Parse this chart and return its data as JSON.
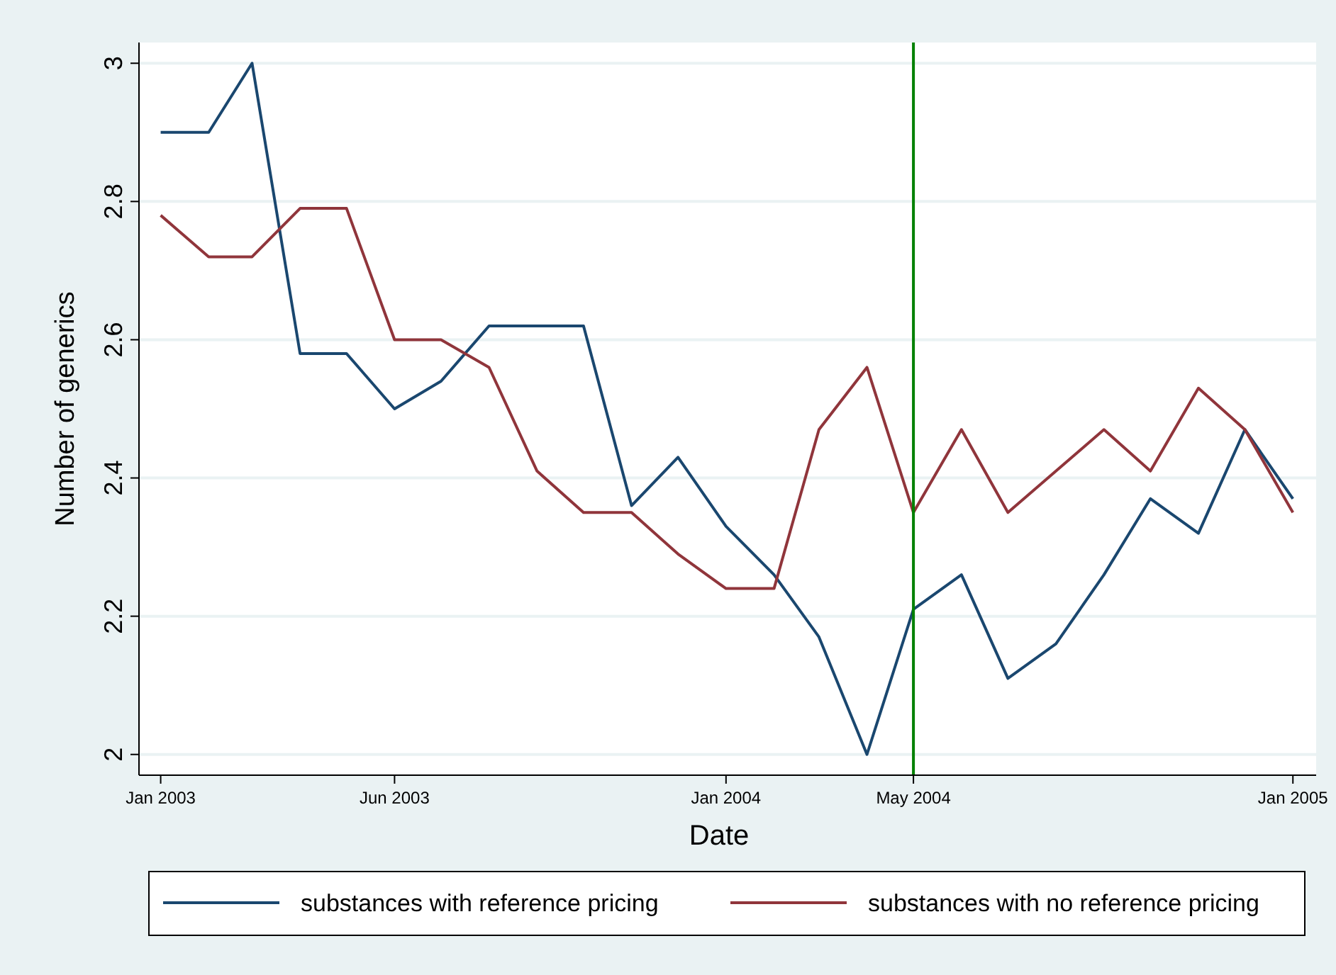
{
  "chart_data": {
    "type": "line",
    "xlabel": "Date",
    "ylabel": "Number of generics",
    "x": [
      "2003-01",
      "2003-02",
      "2003-03",
      "2003-04",
      "2003-05",
      "2003-06",
      "2003-07",
      "2003-08",
      "2003-09",
      "2003-10",
      "2003-11",
      "2003-12",
      "2004-01",
      "2004-02",
      "2004-03",
      "2004-04",
      "2004-05",
      "2004-06",
      "2004-07",
      "2004-08",
      "2004-09",
      "2004-10",
      "2004-11",
      "2004-12",
      "2005-01"
    ],
    "series": [
      {
        "name": "substances with reference pricing",
        "color": "#1a476f",
        "values": [
          2.9,
          2.9,
          3.0,
          2.58,
          2.58,
          2.5,
          2.54,
          2.62,
          2.62,
          2.62,
          2.36,
          2.43,
          2.33,
          2.26,
          2.17,
          2.0,
          2.21,
          2.26,
          2.11,
          2.16,
          2.26,
          2.37,
          2.32,
          2.47,
          2.37
        ]
      },
      {
        "name": "substances with no reference pricing",
        "color": "#90353b",
        "values": [
          2.78,
          2.72,
          2.72,
          2.79,
          2.79,
          2.6,
          2.6,
          2.56,
          2.41,
          2.35,
          2.35,
          2.29,
          2.24,
          2.24,
          2.47,
          2.56,
          2.35,
          2.47,
          2.35,
          2.41,
          2.47,
          2.41,
          2.53,
          2.47,
          2.35
        ]
      }
    ],
    "xlim": [
      "2002-12-18",
      "2005-01-16"
    ],
    "xticks": [
      {
        "value": "2003-01",
        "label": "Jan 2003"
      },
      {
        "value": "2003-06",
        "label": "Jun 2003"
      },
      {
        "value": "2004-01",
        "label": "Jan 2004"
      },
      {
        "value": "2004-05",
        "label": "May 2004"
      },
      {
        "value": "2005-01",
        "label": "Jan 2005"
      }
    ],
    "ylim": [
      1.97,
      3.03
    ],
    "yticks": [
      2,
      2.2,
      2.4,
      2.6,
      2.8,
      3
    ],
    "ref_lines": [
      {
        "axis": "x",
        "value": "2004-05",
        "color": "#008000"
      }
    ],
    "grid": "y",
    "legend": "bottom",
    "marker": "none",
    "line_style": "solid"
  }
}
